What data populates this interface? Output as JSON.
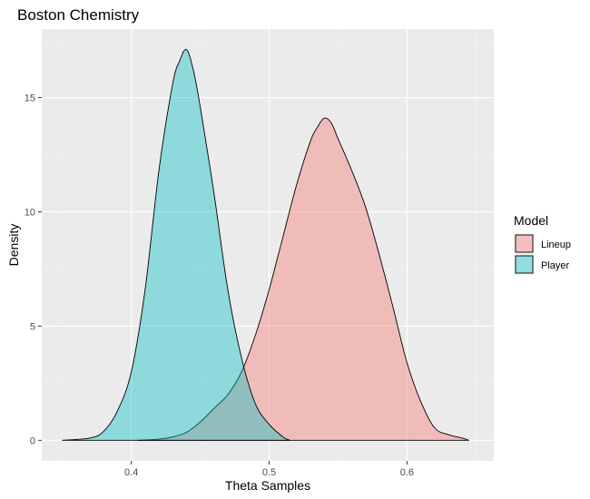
{
  "chart_data": {
    "type": "area",
    "title": "Boston Chemistry",
    "xlabel": "Theta Samples",
    "ylabel": "Density",
    "xlim": [
      0.335,
      0.663
    ],
    "ylim": [
      -0.9,
      18.0
    ],
    "x_ticks": [
      0.4,
      0.5,
      0.6
    ],
    "x_tick_labels": [
      "0.4",
      "0.5",
      "0.6"
    ],
    "y_ticks": [
      0,
      5,
      10,
      15
    ],
    "y_tick_labels": [
      "0",
      "5",
      "10",
      "15"
    ],
    "grid": true,
    "legend": {
      "title": "Model",
      "position": "right"
    },
    "series": [
      {
        "name": "Lineup",
        "color": "#F8766D",
        "x": [
          0.405,
          0.42,
          0.43,
          0.44,
          0.45,
          0.46,
          0.47,
          0.48,
          0.49,
          0.5,
          0.51,
          0.52,
          0.53,
          0.535,
          0.54,
          0.545,
          0.55,
          0.56,
          0.57,
          0.58,
          0.59,
          0.6,
          0.61,
          0.62,
          0.63,
          0.64,
          0.645
        ],
        "y": [
          0,
          0.05,
          0.15,
          0.35,
          0.8,
          1.4,
          2.0,
          3.0,
          4.6,
          6.6,
          8.9,
          11.2,
          13.1,
          13.7,
          14.1,
          13.9,
          13.2,
          11.8,
          10.2,
          8.1,
          5.8,
          3.4,
          1.7,
          0.55,
          0.25,
          0.1,
          0.0
        ]
      },
      {
        "name": "Player",
        "color": "#00BFC4",
        "x": [
          0.35,
          0.37,
          0.38,
          0.39,
          0.4,
          0.41,
          0.42,
          0.43,
          0.435,
          0.44,
          0.445,
          0.45,
          0.46,
          0.47,
          0.48,
          0.49,
          0.5,
          0.51,
          0.515
        ],
        "y": [
          0,
          0.1,
          0.4,
          1.3,
          3.0,
          6.6,
          11.8,
          15.6,
          16.6,
          17.1,
          16.2,
          14.6,
          10.8,
          6.6,
          3.6,
          1.6,
          0.7,
          0.15,
          0.0
        ]
      }
    ]
  }
}
